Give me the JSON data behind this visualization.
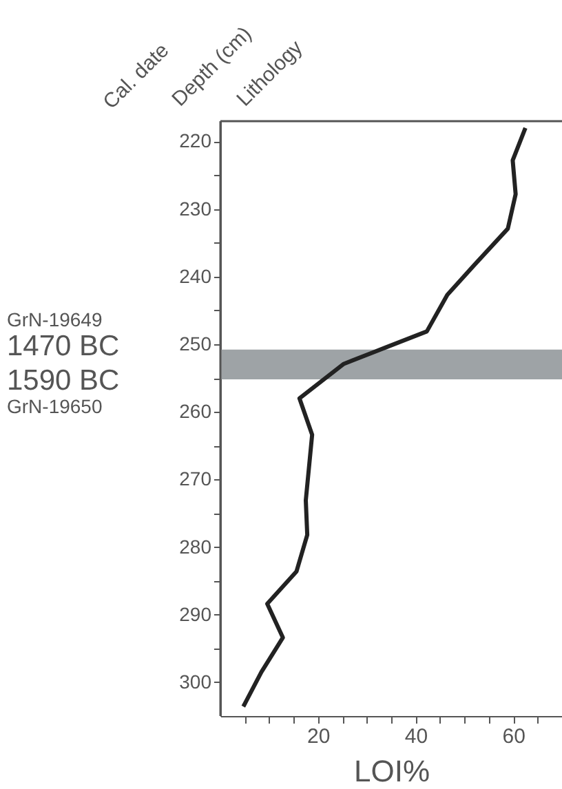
{
  "chart_data": {
    "type": "line",
    "xlabel": "LOI%",
    "ylabel": "Depth (cm)",
    "annotations": [
      "Cal. date",
      "Lithology",
      "GrN-19649",
      "1470 BC",
      "1590 BC",
      "GrN-19650"
    ],
    "series": [
      {
        "color": "#222222",
        "x": [
          62.5,
          59.9,
          60.5,
          58.9,
          52,
          46.5,
          42.3,
          33.8,
          25.3,
          16.2,
          18.8,
          17.5,
          17.8,
          15.6,
          9.6,
          12.8,
          8.4,
          4.7
        ],
        "values": [
          218,
          222.8,
          227.8,
          232.9,
          238.3,
          242.7,
          248.1,
          250.5,
          252.9,
          258,
          263.4,
          273.1,
          278.2,
          283.6,
          288.4,
          293.4,
          298.5,
          303.6
        ]
      }
    ],
    "xlim": [
      0,
      70
    ],
    "xticks": [
      {
        "value": 5,
        "label": null
      },
      {
        "value": 10,
        "label": null
      },
      {
        "value": 15,
        "label": null
      },
      20,
      {
        "value": 25,
        "label": null
      },
      {
        "value": 30,
        "label": null
      },
      {
        "value": 35,
        "label": null
      },
      40,
      {
        "value": 45,
        "label": null
      },
      {
        "value": 50,
        "label": null
      },
      {
        "value": 55,
        "label": null
      },
      60,
      {
        "value": 65,
        "label": null
      }
    ],
    "ylim": [
      305,
      217
    ],
    "yticks": [
      220,
      {
        "value": 225,
        "label": null
      },
      230,
      {
        "value": 235,
        "label": null
      },
      240,
      {
        "value": 245,
        "label": null
      },
      250,
      {
        "value": 255,
        "label": null
      },
      260,
      {
        "value": 265,
        "label": null
      },
      270,
      {
        "value": 275,
        "label": null
      },
      280,
      {
        "value": 285,
        "label": null
      },
      290,
      {
        "value": 295,
        "label": null
      },
      300
    ],
    "bands": [
      {
        "axis": "y",
        "from": 250.8,
        "to": 255.2,
        "color": "#9ea3a6"
      }
    ],
    "grid": false,
    "marker": "none",
    "line_style": "solid"
  }
}
